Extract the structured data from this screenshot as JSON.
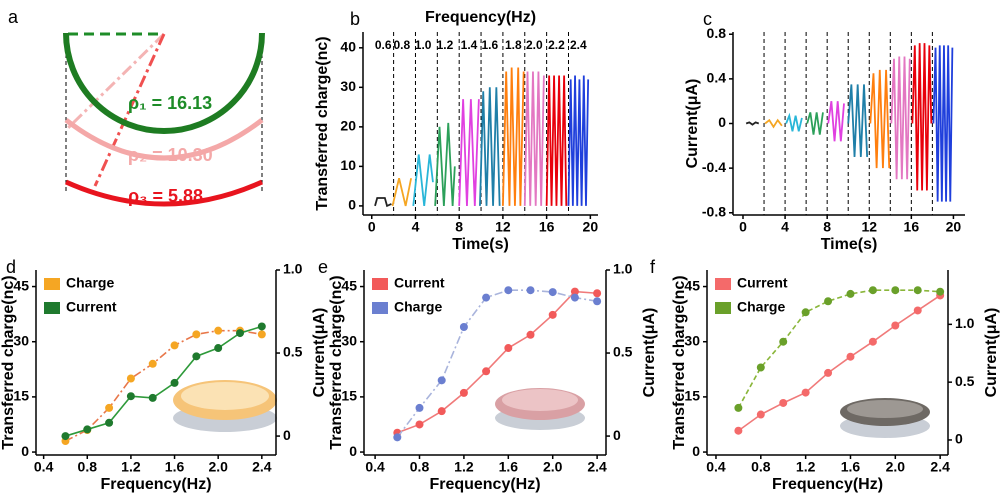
{
  "diagram": {
    "panel_label": "a",
    "labels": [
      "ρ₁ = 16.13",
      "ρ₂ = 10.30",
      "ρ₃ = 5.88"
    ]
  },
  "chart_data": [
    {
      "type": "line",
      "panel_label": "b",
      "title": "Frequency(Hz)",
      "xlabel": "Time(s)",
      "ylabel": "Transferred charge(nc)",
      "xlim": [
        -0.8,
        20.7
      ],
      "ylim": [
        -2.3,
        44
      ],
      "xticks": [
        0,
        4,
        8,
        12,
        16,
        20
      ],
      "yticks": [
        0,
        10,
        20,
        30,
        40
      ],
      "dividers": [
        2,
        4,
        6,
        8,
        10,
        12,
        14,
        16,
        18
      ],
      "series": [
        {
          "name": "0.6",
          "color": "#222222",
          "x": [
            0.3,
            0.5,
            1.2,
            1.4,
            1.8
          ],
          "values": [
            0,
            2,
            2,
            0,
            0.5
          ]
        },
        {
          "name": "0.8",
          "color": "#f5a623",
          "x": [
            1.9,
            2.5,
            3.1,
            3.6
          ],
          "values": [
            0,
            7,
            0,
            7
          ]
        },
        {
          "name": "1.0",
          "color": "#29b6d8",
          "x": [
            3.8,
            4.3,
            4.8,
            5.3,
            5.6
          ],
          "values": [
            0,
            13,
            0,
            13,
            6
          ]
        },
        {
          "name": "1.2",
          "color": "#2ca05a",
          "x": [
            5.8,
            6.2,
            6.6,
            7.0,
            7.4,
            7.6
          ],
          "values": [
            0,
            20,
            0,
            21,
            0,
            10
          ]
        },
        {
          "name": "1.4",
          "color": "#e040e0",
          "x": [
            8.0,
            8.36,
            8.71,
            9.07,
            9.43,
            9.8
          ],
          "values": [
            0,
            27,
            0,
            27,
            0,
            27
          ]
        },
        {
          "name": "1.6",
          "color": "#1f7fa8",
          "x": [
            9.9,
            10.2,
            10.5,
            10.8,
            11.1,
            11.4,
            11.7
          ],
          "values": [
            0,
            29,
            0,
            30,
            0,
            30,
            0
          ]
        },
        {
          "name": "1.8",
          "color": "#ff7f0e",
          "x": [
            12.0,
            12.3,
            12.6,
            12.8,
            13.1,
            13.4,
            13.6,
            13.9
          ],
          "values": [
            0,
            34,
            0,
            35,
            0,
            35,
            0,
            34
          ]
        },
        {
          "name": "2.0",
          "color": "#e377c2",
          "x": [
            14.0,
            14.25,
            14.5,
            14.75,
            15.0,
            15.25,
            15.5,
            15.75
          ],
          "values": [
            0,
            34,
            0,
            34,
            0,
            34,
            0,
            33
          ]
        },
        {
          "name": "2.2",
          "color": "#e8000b",
          "x": [
            16.0,
            16.23,
            16.45,
            16.68,
            16.9,
            17.14,
            17.36,
            17.6,
            17.8
          ],
          "values": [
            0,
            33,
            0,
            33,
            0,
            33,
            0,
            33,
            0
          ]
        },
        {
          "name": "2.4",
          "color": "#1f3fdc",
          "x": [
            18.0,
            18.2,
            18.4,
            18.6,
            18.8,
            19.0,
            19.2,
            19.4,
            19.6,
            19.8
          ],
          "values": [
            0,
            32,
            0,
            33,
            0,
            32,
            0,
            33,
            0,
            32
          ]
        }
      ]
    },
    {
      "type": "line",
      "panel_label": "c",
      "xlabel": "Time(s)",
      "ylabel": "Current(μA)",
      "xlim": [
        -0.95,
        21.1
      ],
      "ylim": [
        -0.82,
        0.82
      ],
      "xticks": [
        0,
        4,
        8,
        12,
        16,
        20
      ],
      "yticks": [
        -0.8,
        -0.4,
        0,
        0.4,
        0.8
      ],
      "dividers": [
        2,
        4,
        6,
        8,
        10,
        12,
        14,
        16,
        18
      ],
      "series": [
        {
          "color": "#222222",
          "x": [
            0.3,
            0.6,
            0.9,
            1.2,
            1.5
          ],
          "values": [
            0,
            0.01,
            -0.01,
            0.01,
            0
          ]
        },
        {
          "color": "#f5a623",
          "x": [
            2.1,
            2.5,
            2.9,
            3.3,
            3.7
          ],
          "values": [
            0,
            0.03,
            -0.03,
            0.03,
            -0.02
          ]
        },
        {
          "color": "#29b6d8",
          "x": [
            4.1,
            4.4,
            4.7,
            5.0,
            5.3,
            5.6
          ],
          "values": [
            0,
            0.07,
            -0.07,
            0.07,
            -0.07,
            0.05
          ]
        },
        {
          "color": "#2ca05a",
          "x": [
            6.1,
            6.4,
            6.7,
            7.0,
            7.3,
            7.6
          ],
          "values": [
            0,
            0.1,
            -0.1,
            0.1,
            -0.1,
            0.1
          ]
        },
        {
          "color": "#e040e0",
          "x": [
            8.1,
            8.4,
            8.7,
            9.0,
            9.3,
            9.6
          ],
          "values": [
            0,
            0.2,
            -0.16,
            0.2,
            -0.16,
            0.18
          ]
        },
        {
          "color": "#1f7fa8",
          "x": [
            10.0,
            10.3,
            10.6,
            10.9,
            11.2,
            11.5,
            11.8
          ],
          "values": [
            0,
            0.35,
            -0.3,
            0.35,
            -0.3,
            0.35,
            -0.3
          ]
        },
        {
          "color": "#ff7f0e",
          "x": [
            12.1,
            12.4,
            12.7,
            13.0,
            13.3,
            13.6,
            13.9
          ],
          "values": [
            0,
            0.45,
            -0.4,
            0.48,
            -0.4,
            0.48,
            -0.4
          ]
        },
        {
          "color": "#e377c2",
          "x": [
            14.1,
            14.35,
            14.6,
            14.85,
            15.1,
            15.35,
            15.6,
            15.85
          ],
          "values": [
            0,
            0.58,
            -0.5,
            0.6,
            -0.5,
            0.6,
            -0.5,
            0.58
          ]
        },
        {
          "color": "#e8000b",
          "x": [
            16.1,
            16.33,
            16.56,
            16.79,
            17.02,
            17.25,
            17.48,
            17.71,
            17.9
          ],
          "values": [
            0,
            0.7,
            -0.6,
            0.72,
            -0.6,
            0.72,
            -0.6,
            0.7,
            0
          ]
        },
        {
          "color": "#1f3fdc",
          "x": [
            18.1,
            18.3,
            18.5,
            18.7,
            18.9,
            19.1,
            19.3,
            19.5,
            19.7,
            19.9
          ],
          "values": [
            0,
            0.68,
            -0.7,
            0.7,
            -0.7,
            0.7,
            -0.7,
            0.7,
            -0.7,
            0.68
          ]
        }
      ]
    },
    {
      "type": "line",
      "panel_label": "d",
      "xlabel": "Frequency(Hz)",
      "ylabel": "Transferred charge(nc)",
      "y2label": "Current(μA)",
      "xlim": [
        0.33,
        2.53
      ],
      "ylim": [
        -0.8,
        49.5
      ],
      "y2lim": [
        -0.114,
        1.0
      ],
      "xticks": [
        0.4,
        0.8,
        1.2,
        1.6,
        {
          "value": 2,
          "label": "2.0"
        },
        2.4
      ],
      "yticks": [
        0,
        15,
        30,
        45
      ],
      "y2ticks": [
        0,
        0.5,
        {
          "value": 1,
          "label": "1.0"
        }
      ],
      "legend": "upper left",
      "series": [
        {
          "name": "Charge",
          "color": "#f5a623",
          "line_color": "#e8774a",
          "line_style": "dashdot",
          "markers": true,
          "x": [
            0.6,
            0.8,
            1.0,
            1.2,
            1.4,
            1.6,
            1.8,
            2.0,
            2.2,
            2.4
          ],
          "values": [
            3,
            6,
            12,
            20,
            24,
            29,
            32,
            33,
            33,
            32
          ]
        },
        {
          "name": "Current",
          "color": "#1f7a2e",
          "line_color": "#2e9a3a",
          "line_style": "solid",
          "markers": true,
          "axis": "y2",
          "x": [
            0.6,
            0.8,
            1.0,
            1.2,
            1.4,
            1.6,
            1.8,
            2.0,
            2.2,
            2.4
          ],
          "values": [
            0.0,
            0.04,
            0.08,
            0.24,
            0.23,
            0.32,
            0.48,
            0.53,
            0.62,
            0.66
          ]
        }
      ]
    },
    {
      "type": "line",
      "panel_label": "e",
      "xlabel": "Frequency(Hz)",
      "ylabel": "Transferred charge(nc)",
      "y2label": "Current(μA)",
      "xlim": [
        0.3,
        2.48
      ],
      "ylim": [
        -0.8,
        49.5
      ],
      "y2lim": [
        -0.114,
        1.0
      ],
      "xticks": [
        0.4,
        0.8,
        1.2,
        1.6,
        {
          "value": 2,
          "label": "2.0"
        },
        2.4
      ],
      "yticks": [
        0,
        15,
        30,
        45
      ],
      "y2ticks": [
        0,
        0.5,
        {
          "value": 1,
          "label": "1.0"
        }
      ],
      "legend": "upper left",
      "series": [
        {
          "name": "Current",
          "color": "#f25a5a",
          "line_color": "#f07a7a",
          "line_style": "solid",
          "markers": true,
          "axis": "y2",
          "x": [
            0.6,
            0.8,
            1.0,
            1.2,
            1.4,
            1.6,
            1.8,
            2.0,
            2.2,
            2.4
          ],
          "values": [
            0.02,
            0.07,
            0.15,
            0.26,
            0.39,
            0.53,
            0.61,
            0.73,
            0.87,
            0.86
          ]
        },
        {
          "name": "Charge",
          "color": "#6b7fd0",
          "line_color": "#a9b4dc",
          "line_style": "dashdot",
          "markers": true,
          "x": [
            0.6,
            0.8,
            1.0,
            1.2,
            1.4,
            1.6,
            1.8,
            2.0,
            2.2,
            2.4
          ],
          "values": [
            4,
            12,
            19.5,
            34,
            42,
            44,
            44,
            43.5,
            42,
            41
          ]
        }
      ]
    },
    {
      "type": "line",
      "panel_label": "f",
      "xlabel": "Frequency(Hz)",
      "ylabel": "Transferred charge(nc)",
      "y2label": "Current(μA)",
      "xlim": [
        0.32,
        2.47
      ],
      "ylim": [
        -0.8,
        49.5
      ],
      "y2lim": [
        -0.13,
        1.47
      ],
      "xticks": [
        0.4,
        0.8,
        1.2,
        1.6,
        {
          "value": 2,
          "label": "2.0"
        },
        2.4
      ],
      "yticks": [
        0,
        15,
        30,
        45
      ],
      "y2ticks": [
        0,
        0.5,
        {
          "value": 1,
          "label": "1.0"
        }
      ],
      "legend": "upper left",
      "series": [
        {
          "name": "Current",
          "color": "#f46a6a",
          "line_color": "#f07a7a",
          "line_style": "solid",
          "markers": true,
          "axis": "y2",
          "x": [
            0.6,
            0.8,
            1.0,
            1.2,
            1.4,
            1.6,
            1.8,
            2.0,
            2.2,
            2.4
          ],
          "values": [
            0.08,
            0.22,
            0.32,
            0.41,
            0.58,
            0.72,
            0.85,
            0.99,
            1.12,
            1.25
          ]
        },
        {
          "name": "Charge",
          "color": "#6aa02a",
          "line_color": "#8ab63a",
          "line_style": "dashed",
          "markers": true,
          "x": [
            0.6,
            0.8,
            1.0,
            1.2,
            1.4,
            1.6,
            1.8,
            2.0,
            2.2,
            2.4
          ],
          "values": [
            12,
            23,
            30,
            38,
            41,
            43,
            44,
            44,
            44,
            43.6
          ]
        }
      ]
    }
  ]
}
